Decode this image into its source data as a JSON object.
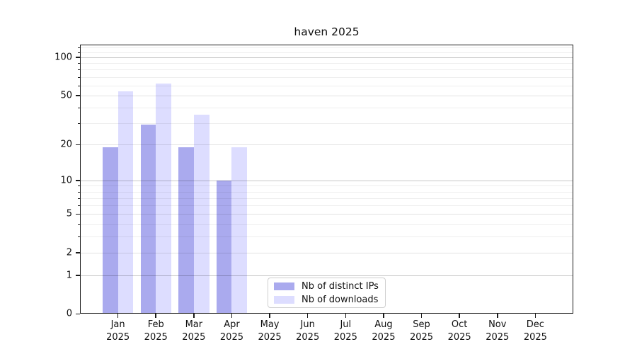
{
  "chart_data": {
    "type": "bar",
    "title": "haven 2025",
    "categories": [
      "Jan 2025",
      "Feb 2025",
      "Mar 2025",
      "Apr 2025",
      "May 2025",
      "Jun 2025",
      "Jul 2025",
      "Aug 2025",
      "Sep 2025",
      "Oct 2025",
      "Nov 2025",
      "Dec 2025"
    ],
    "series": [
      {
        "name": "Nb of distinct IPs",
        "color": "#aaaaee",
        "values": [
          19,
          29,
          19,
          10,
          0,
          0,
          0,
          0,
          0,
          0,
          0,
          0
        ]
      },
      {
        "name": "Nb of downloads",
        "color": "#ddddff",
        "values": [
          54,
          62,
          35,
          19,
          0,
          0,
          0,
          0,
          0,
          0,
          0,
          0
        ]
      }
    ],
    "xlabel": "",
    "ylabel": "",
    "yscale": "log10(value+1)",
    "ytick_labels": [
      0,
      1,
      2,
      5,
      10,
      20,
      50,
      100
    ],
    "yticks_minor": [
      3,
      4,
      6,
      7,
      8,
      9,
      30,
      40,
      60,
      70,
      80,
      90,
      110,
      120
    ],
    "ylim": [
      0,
      126
    ],
    "grid": true,
    "legend_position": "inside-bottom-center"
  }
}
